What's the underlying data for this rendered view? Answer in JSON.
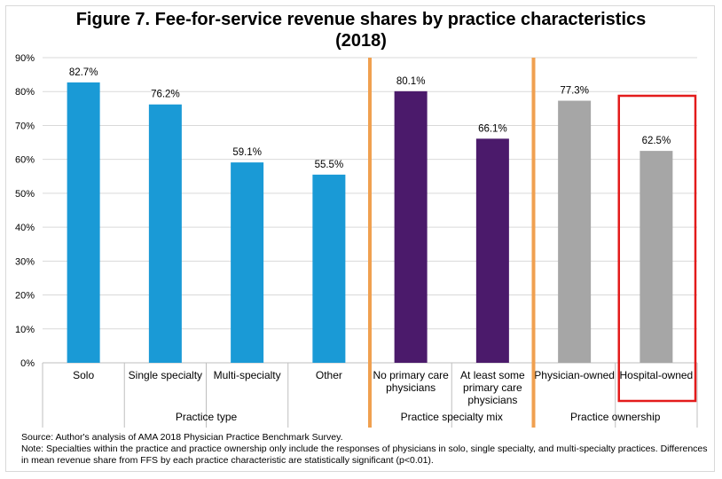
{
  "title_line1": "Figure 7. Fee-for-service revenue shares by practice characteristics",
  "title_line2": "(2018)",
  "source": "Source: Author's analysis of AMA 2018 Physician Practice Benchmark Survey.",
  "note": "Note: Specialties within the practice and practice ownership only include the responses of physicians in solo, single specialty, and multi-specialty practices. Differences in mean revenue share from FFS by each practice characteristic are statistically significant (p<0.01).",
  "colors": {
    "practice_type": "#1a9ad6",
    "specialty_mix": "#4b1a6b",
    "ownership": "#a6a6a6",
    "group_divider": "#f0a050",
    "highlight_box": "#e31b1b",
    "grid": "#d9d9d9"
  },
  "chart_data": {
    "type": "bar",
    "ylim": [
      0,
      90
    ],
    "yticks": [
      "0%",
      "10%",
      "20%",
      "30%",
      "40%",
      "50%",
      "60%",
      "70%",
      "80%",
      "90%"
    ],
    "groups": [
      {
        "name": "Practice type",
        "color_key": "practice_type",
        "bars": [
          {
            "label": [
              "Solo"
            ],
            "value": 82.7,
            "value_label": "82.7%"
          },
          {
            "label": [
              "Single specialty"
            ],
            "value": 76.2,
            "value_label": "76.2%"
          },
          {
            "label": [
              "Multi-specialty"
            ],
            "value": 59.1,
            "value_label": "59.1%"
          },
          {
            "label": [
              "Other"
            ],
            "value": 55.5,
            "value_label": "55.5%"
          }
        ]
      },
      {
        "name": "Practice specialty mix",
        "color_key": "specialty_mix",
        "bars": [
          {
            "label": [
              "No primary care",
              "physicians"
            ],
            "value": 80.1,
            "value_label": "80.1%"
          },
          {
            "label": [
              "At least some",
              "primary care",
              "physicians"
            ],
            "value": 66.1,
            "value_label": "66.1%"
          }
        ]
      },
      {
        "name": "Practice ownership",
        "color_key": "ownership",
        "bars": [
          {
            "label": [
              "Physician-owned"
            ],
            "value": 77.3,
            "value_label": "77.3%"
          },
          {
            "label": [
              "Hospital-owned"
            ],
            "value": 62.5,
            "value_label": "62.5%",
            "highlighted": true
          }
        ]
      }
    ]
  }
}
